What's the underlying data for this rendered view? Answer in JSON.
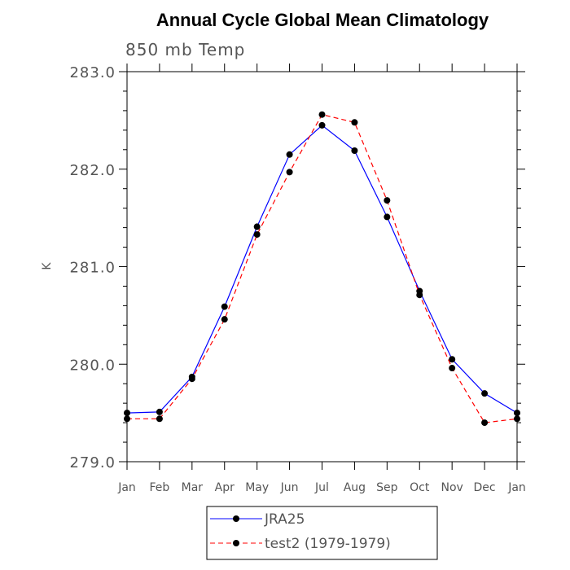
{
  "chart_data": {
    "type": "line",
    "title": "Annual Cycle Global Mean Climatology",
    "subtitle": "850 mb Temp",
    "xlabel": "",
    "ylabel": "K",
    "categories": [
      "Jan",
      "Feb",
      "Mar",
      "Apr",
      "May",
      "Jun",
      "Jul",
      "Aug",
      "Sep",
      "Oct",
      "Nov",
      "Dec",
      "Jan"
    ],
    "ylim": [
      279.0,
      283.0
    ],
    "yticks": [
      "279.0",
      "280.0",
      "281.0",
      "282.0",
      "283.0"
    ],
    "grid": false,
    "legend_position": "bottom",
    "series": [
      {
        "name": "JRA25",
        "color": "#0000ff",
        "dash": "solid",
        "values": [
          279.5,
          279.51,
          279.87,
          280.59,
          281.41,
          282.15,
          282.45,
          282.19,
          281.51,
          280.75,
          280.05,
          279.7,
          279.5
        ]
      },
      {
        "name": "test2 (1979-1979)",
        "color": "#ff0000",
        "dash": "dashed",
        "values": [
          279.44,
          279.44,
          279.85,
          280.46,
          281.33,
          281.97,
          282.56,
          282.48,
          281.68,
          280.71,
          279.96,
          279.4,
          279.44
        ]
      }
    ]
  }
}
